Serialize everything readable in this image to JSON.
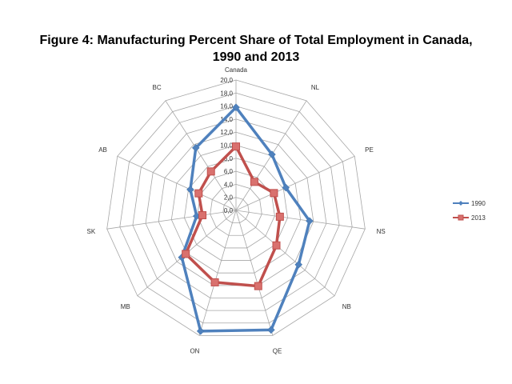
{
  "chart_data": {
    "type": "radar",
    "title_line1": "Figure 4: Manufacturing Percent  Share of Total Employment in Canada,",
    "title_line2": "1990 and 2013",
    "categories": [
      "Canada",
      "NL",
      "PE",
      "NS",
      "NB",
      "QE",
      "ON",
      "MB",
      "SK",
      "AB",
      "BC"
    ],
    "rlim": [
      0,
      20
    ],
    "ticks": [
      "0,0",
      "2,0",
      "4,0",
      "6,0",
      "8,0",
      "10,0",
      "12,0",
      "14,0",
      "16,0",
      "18,0",
      "20,0"
    ],
    "tick_values": [
      0,
      2,
      4,
      6,
      8,
      10,
      12,
      14,
      16,
      18,
      20
    ],
    "grid": true,
    "legend_position": "right",
    "series": [
      {
        "name": "1990",
        "color": "#4f81bd",
        "marker": "diamond",
        "values": [
          15.8,
          10.2,
          8.4,
          11.4,
          12.7,
          19.1,
          19.3,
          11.0,
          6.1,
          7.7,
          11.4
        ]
      },
      {
        "name": "2013",
        "color": "#c0504d",
        "marker": "square",
        "values": [
          9.8,
          5.2,
          6.4,
          6.8,
          8.2,
          12.1,
          11.5,
          10.2,
          5.2,
          6.3,
          7.1
        ]
      }
    ]
  }
}
